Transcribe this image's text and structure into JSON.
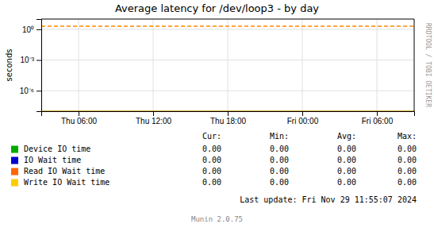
{
  "chart_data": {
    "type": "line",
    "title": "Average latency for /dev/loop3 - by day",
    "y_label": "seconds",
    "log": "y",
    "grid": true,
    "legend": "bottom",
    "categories": [
      "Thu 06:00",
      "Thu 12:00",
      "Thu 18:00",
      "Fri 00:00",
      "Fri 06:00"
    ],
    "ylim": [
      1e-08,
      10
    ],
    "yticks": [
      {
        "value": 1e-06,
        "label": "10⁻⁶"
      },
      {
        "value": 0.001,
        "label": "10⁻³"
      },
      {
        "value": 1,
        "label": "10⁰"
      }
    ],
    "series": [
      {
        "name": "Device IO time",
        "color": "#00aa00",
        "values": [
          null,
          null,
          null,
          null,
          null
        ]
      },
      {
        "name": "IO Wait time",
        "color": "#0000cc",
        "values": [
          null,
          null,
          null,
          null,
          null
        ]
      },
      {
        "name": "Read IO Wait time",
        "color": "#ff6600",
        "values": [
          null,
          null,
          null,
          null,
          null
        ]
      },
      {
        "name": "Write IO Wait time",
        "color": "#ffcc00",
        "values": [
          null,
          null,
          null,
          null,
          null
        ]
      }
    ],
    "reference_lines": [
      {
        "value": 2.0,
        "color": "#ff8800",
        "line_style": "dashed"
      },
      {
        "value": 1e-08,
        "color": "#cc9900",
        "line_style": "solid"
      }
    ],
    "table": {
      "columns": [
        "Cur:",
        "Min:",
        "Avg:",
        "Max:"
      ],
      "values": [
        [
          0.0,
          0.0,
          0.0,
          0.0
        ],
        [
          0.0,
          0.0,
          0.0,
          0.0
        ],
        [
          0.0,
          0.0,
          0.0,
          0.0
        ],
        [
          0.0,
          0.0,
          0.0,
          0.0
        ]
      ],
      "value_labels": [
        [
          "0.00",
          "0.00",
          "0.00",
          "0.00"
        ],
        [
          "0.00",
          "0.00",
          "0.00",
          "0.00"
        ],
        [
          "0.00",
          "0.00",
          "0.00",
          "0.00"
        ],
        [
          "0.00",
          "0.00",
          "0.00",
          "0.00"
        ]
      ]
    },
    "annotations": [
      "Last update: Fri Nov 29 11:55:07 2024",
      "Munin 2.0.75",
      "RRDTOOL / TOBI OETIKER"
    ]
  }
}
